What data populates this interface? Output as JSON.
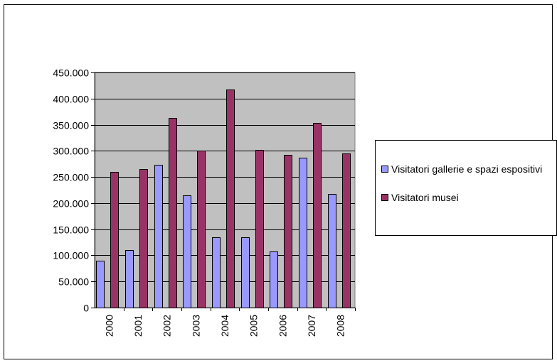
{
  "chart_data": {
    "type": "bar",
    "title": "",
    "xlabel": "",
    "ylabel": "",
    "categories": [
      "2000",
      "2001",
      "2002",
      "2003",
      "2004",
      "2005",
      "2006",
      "2007",
      "2008"
    ],
    "series": [
      {
        "name": "Visitatori gallerie e spazi espositivi",
        "color": "#9999ff",
        "values": [
          90000,
          110000,
          273000,
          215000,
          135000,
          135000,
          108000,
          287000,
          217000
        ]
      },
      {
        "name": "Visitatori musei",
        "color": "#993366",
        "values": [
          260000,
          265000,
          363000,
          300000,
          418000,
          302000,
          292000,
          353000,
          295000
        ]
      }
    ],
    "ylim": [
      0,
      450000
    ],
    "yticks": [
      "0",
      "50.000",
      "100.000",
      "150.000",
      "200.000",
      "250.000",
      "300.000",
      "350.000",
      "400.000",
      "450.000"
    ],
    "grid": true,
    "plot_background": "#c0c0c0",
    "legend_position": "right"
  }
}
